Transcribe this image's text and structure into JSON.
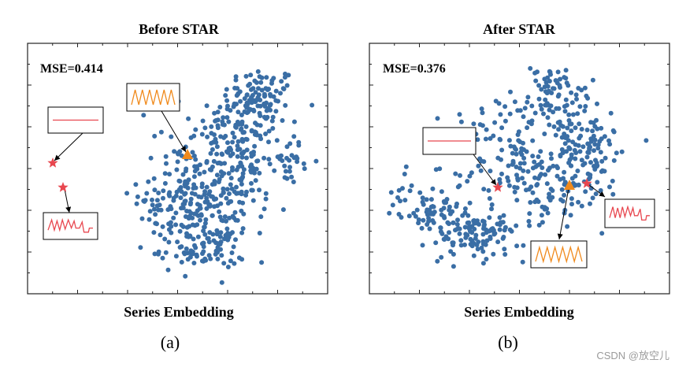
{
  "chart_data": [
    {
      "type": "scatter",
      "title": "Before STAR",
      "xlabel": "Series Embedding",
      "caption": "(a)",
      "metric_label": "MSE=0.414",
      "point_color": "#3a6ea5",
      "grid": false,
      "highlights": [
        {
          "kind": "star",
          "color": "#e8474f",
          "x": 0.1,
          "y": 0.57,
          "inset": "flat-line"
        },
        {
          "kind": "star",
          "color": "#e8474f",
          "x": 0.14,
          "y": 0.45,
          "inset": "red-wave"
        },
        {
          "kind": "triangle",
          "color": "#f08a1c",
          "x": 0.7,
          "y": 0.6,
          "inset": "orange-wave"
        }
      ],
      "clusters": [
        {
          "cx": 0.86,
          "cy": 0.83,
          "sx": 0.07,
          "sy": 0.06,
          "n": 80
        },
        {
          "cx": 0.78,
          "cy": 0.7,
          "sx": 0.09,
          "sy": 0.09,
          "n": 90
        },
        {
          "cx": 0.68,
          "cy": 0.55,
          "sx": 0.09,
          "sy": 0.1,
          "n": 90
        },
        {
          "cx": 0.58,
          "cy": 0.4,
          "sx": 0.09,
          "sy": 0.09,
          "n": 90
        },
        {
          "cx": 0.64,
          "cy": 0.16,
          "sx": 0.08,
          "sy": 0.05,
          "n": 80
        },
        {
          "cx": 0.82,
          "cy": 0.48,
          "sx": 0.07,
          "sy": 0.07,
          "n": 50
        },
        {
          "cx": 0.72,
          "cy": 0.32,
          "sx": 0.08,
          "sy": 0.08,
          "n": 60
        },
        {
          "cx": 0.53,
          "cy": 0.3,
          "sx": 0.06,
          "sy": 0.07,
          "n": 40
        },
        {
          "cx": 0.98,
          "cy": 0.55,
          "sx": 0.03,
          "sy": 0.05,
          "n": 25
        }
      ],
      "xlim": [
        0,
        1.3
      ],
      "ylim": [
        0,
        1
      ]
    },
    {
      "type": "scatter",
      "title": "After STAR",
      "xlabel": "Series Embedding",
      "caption": "(b)",
      "metric_label": "MSE=0.376",
      "point_color": "#3a6ea5",
      "grid": false,
      "highlights": [
        {
          "kind": "star",
          "color": "#e8474f",
          "x": 0.42,
          "y": 0.45,
          "inset": "flat-line"
        },
        {
          "kind": "star",
          "color": "#e8474f",
          "x": 0.72,
          "y": 0.47,
          "inset": "red-wave"
        },
        {
          "kind": "triangle",
          "color": "#f08a1c",
          "x": 0.66,
          "y": 0.46,
          "inset": "orange-wave"
        }
      ],
      "clusters": [
        {
          "cx": 0.68,
          "cy": 0.85,
          "sx": 0.07,
          "sy": 0.06,
          "n": 60
        },
        {
          "cx": 0.62,
          "cy": 0.68,
          "sx": 0.12,
          "sy": 0.08,
          "n": 90
        },
        {
          "cx": 0.5,
          "cy": 0.52,
          "sx": 0.13,
          "sy": 0.08,
          "n": 90
        },
        {
          "cx": 0.7,
          "cy": 0.4,
          "sx": 0.1,
          "sy": 0.08,
          "n": 80
        },
        {
          "cx": 0.33,
          "cy": 0.25,
          "sx": 0.08,
          "sy": 0.06,
          "n": 100
        },
        {
          "cx": 0.2,
          "cy": 0.33,
          "sx": 0.06,
          "sy": 0.05,
          "n": 40
        },
        {
          "cx": 0.8,
          "cy": 0.6,
          "sx": 0.08,
          "sy": 0.08,
          "n": 60
        },
        {
          "cx": 0.45,
          "cy": 0.2,
          "sx": 0.05,
          "sy": 0.05,
          "n": 30
        },
        {
          "cx": 0.1,
          "cy": 0.4,
          "sx": 0.03,
          "sy": 0.05,
          "n": 12
        }
      ],
      "xlim": [
        0,
        1
      ],
      "ylim": [
        0,
        1
      ]
    }
  ],
  "watermark": "CSDN @放空儿"
}
